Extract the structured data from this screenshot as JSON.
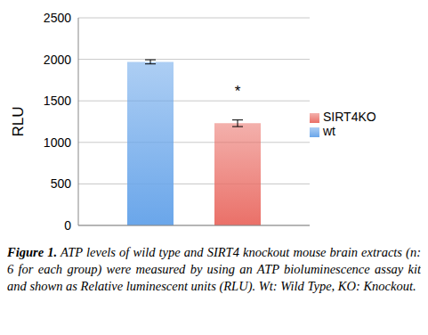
{
  "chart_data": {
    "type": "bar",
    "categories": [
      null
    ],
    "y_label": "RLU",
    "ylim": [
      0,
      2500
    ],
    "yticks": [
      0,
      500,
      1000,
      1500,
      2000,
      2500
    ],
    "grid": true,
    "legend": "right",
    "series": [
      {
        "name": "wt",
        "color": "#6aa6ea",
        "values": [
          1970
        ],
        "error": [
          25
        ]
      },
      {
        "name": "SIRT4KO",
        "color": "#ea7068",
        "values": [
          1230
        ],
        "error": [
          40
        ],
        "annotation": "*"
      }
    ],
    "caption_label": "Figure 1.",
    "caption": "ATP levels of wild type and SIRT4 knockout mouse brain extracts (n: 6 for each group) were measured by using an ATP bioluminescence assay kit and shown as Relative luminescent units (RLU). Wt: Wild Type, KO: Knockout."
  }
}
